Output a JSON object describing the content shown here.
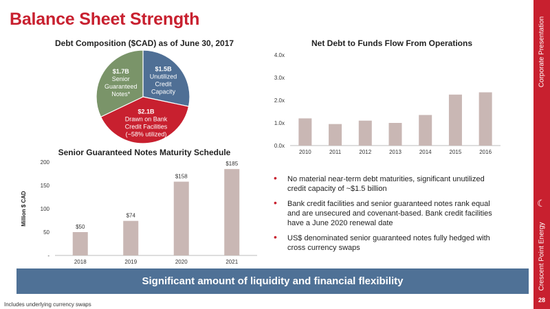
{
  "page": {
    "title": "Balance Sheet Strength",
    "page_number": "28",
    "footnote": "Includes underlying currency swaps"
  },
  "sidebar": {
    "top_text": "Corporate Presentation",
    "bottom_text": "Crescent Point Energy",
    "logo_icon": "crescent-logo-icon"
  },
  "bullets": [
    "No material near-term debt maturities, significant unutilized credit capacity of ~$1.5 billion",
    "Bank credit facilities and senior guaranteed notes rank equal and are unsecured and covenant-based. Bank credit facilities have a June 2020 renewal date",
    "US$ denominated senior guaranteed notes fully hedged with cross currency swaps"
  ],
  "banner": {
    "text": "Significant amount of liquidity and financial flexibility"
  },
  "colors": {
    "brand_red": "#c8202f",
    "banner_blue": "#4f7196",
    "bar": "#c9b7b4",
    "pie_blue": "#4f6f95",
    "pie_red": "#c8202f",
    "pie_green": "#7a9469"
  },
  "chart_data": [
    {
      "type": "pie",
      "title": "Debt Composition ($CAD) as of June 30, 2017",
      "slices": [
        {
          "name": "Unutilized Credit Capacity",
          "value": 1.5,
          "label_lines": [
            "$1.5B",
            "Unutilized",
            "Credit",
            "Capacity"
          ],
          "color": "#4f6f95"
        },
        {
          "name": "Drawn on Bank Credit Facilities",
          "value": 2.1,
          "label_lines": [
            "$2.1B",
            "Drawn on Bank",
            "Credit Facilities",
            "(~58% utilized)"
          ],
          "color": "#c8202f"
        },
        {
          "name": "Senior Guaranteed Notes",
          "value": 1.7,
          "label_lines": [
            "$1.7B",
            "Senior",
            "Guaranteed",
            "Notes*"
          ],
          "color": "#7a9469"
        }
      ]
    },
    {
      "type": "bar",
      "title": "Net Debt to Funds Flow From Operations",
      "categories": [
        "2010",
        "2011",
        "2012",
        "2013",
        "2014",
        "2015",
        "2016"
      ],
      "values": [
        1.2,
        0.95,
        1.1,
        1.0,
        1.35,
        2.25,
        2.35
      ],
      "ylim": [
        0,
        4
      ],
      "yticks": [
        "0.0x",
        "1.0x",
        "2.0x",
        "3.0x",
        "4.0x"
      ],
      "ytick_values": [
        0,
        1,
        2,
        3,
        4
      ],
      "grid": false,
      "color": "#c9b7b4"
    },
    {
      "type": "bar",
      "title": "Senior Guaranteed Notes Maturity Schedule",
      "ylabel": "Million $ CAD",
      "categories": [
        "2018",
        "2019",
        "2020",
        "2021"
      ],
      "values": [
        50,
        74,
        158,
        185
      ],
      "data_labels": [
        "$50",
        "$74",
        "$158",
        "$185"
      ],
      "ylim": [
        0,
        200
      ],
      "yticks": [
        "-",
        "50",
        "100",
        "150",
        "200"
      ],
      "ytick_values": [
        0,
        50,
        100,
        150,
        200
      ],
      "grid": false,
      "color": "#c9b7b4"
    }
  ]
}
